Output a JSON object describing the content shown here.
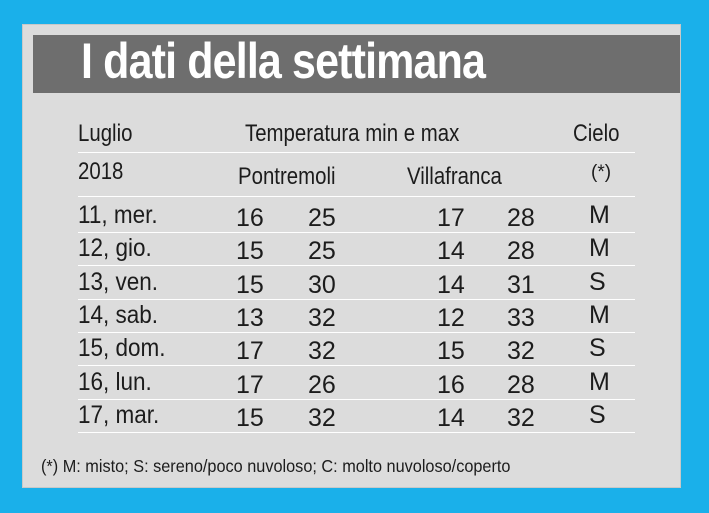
{
  "title": "I dati della settimana",
  "headers": {
    "month": "Luglio",
    "year": "2018",
    "temperature": "Temperatura min e max",
    "sky": "Cielo",
    "sky_note": "(*)",
    "city1": "Pontremoli",
    "city2": "Villafranca"
  },
  "rows": [
    {
      "day": "11, mer.",
      "p_min": "16",
      "p_max": "25",
      "v_min": "17",
      "v_max": "28",
      "sky": "M"
    },
    {
      "day": "12, gio.",
      "p_min": "15",
      "p_max": "25",
      "v_min": "14",
      "v_max": "28",
      "sky": "M"
    },
    {
      "day": "13, ven.",
      "p_min": "15",
      "p_max": "30",
      "v_min": "14",
      "v_max": "31",
      "sky": "S"
    },
    {
      "day": "14, sab.",
      "p_min": "13",
      "p_max": "32",
      "v_min": "12",
      "v_max": "33",
      "sky": "M"
    },
    {
      "day": "15, dom.",
      "p_min": "17",
      "p_max": "32",
      "v_min": "15",
      "v_max": "32",
      "sky": "S"
    },
    {
      "day": "16, lun.",
      "p_min": "17",
      "p_max": "26",
      "v_min": "16",
      "v_max": "28",
      "sky": "M"
    },
    {
      "day": "17, mar.",
      "p_min": "15",
      "p_max": "32",
      "v_min": "14",
      "v_max": "32",
      "sky": "S"
    }
  ],
  "footnote": "(*) M: misto; S: sereno/poco nuvoloso; C: molto nuvoloso/coperto",
  "colors": {
    "frame": "#1ab0ea",
    "title_bar": "#6e6e6e",
    "card": "#dcdcdc",
    "text": "#1c1c1c"
  }
}
